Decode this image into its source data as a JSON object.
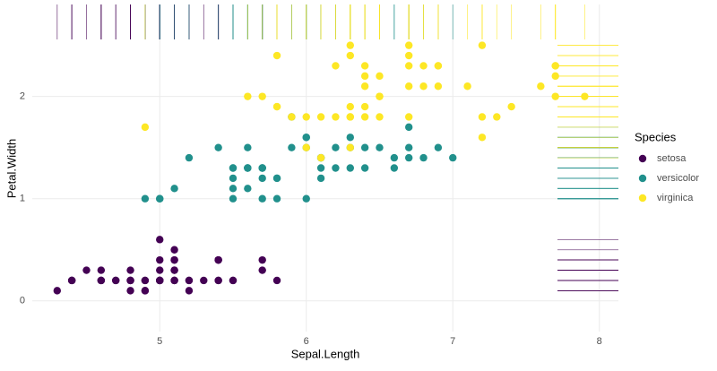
{
  "chart_data": {
    "type": "scatter",
    "x_label": "Sepal.Length",
    "y_label": "Petal.Width",
    "legend_title": "Species",
    "xlim": [
      4.13,
      8.13
    ],
    "ylim": [
      -0.3,
      2.9
    ],
    "xticks": [
      5,
      6,
      7,
      8
    ],
    "yticks": [
      0,
      1,
      2
    ],
    "grid": true,
    "rug": true,
    "legend": "right",
    "series": [
      {
        "name": "setosa",
        "color": "#440154",
        "x": [
          5.1,
          4.9,
          4.7,
          4.6,
          5.0,
          5.4,
          4.6,
          5.0,
          4.4,
          4.9,
          5.4,
          4.8,
          4.8,
          4.3,
          5.8,
          5.7,
          5.4,
          5.1,
          5.7,
          5.1,
          5.4,
          5.1,
          4.6,
          5.1,
          4.8,
          5.0,
          5.0,
          5.2,
          5.2,
          4.7,
          4.8,
          5.4,
          5.2,
          5.5,
          4.9,
          5.0,
          5.5,
          4.9,
          4.4,
          5.1,
          5.0,
          4.5,
          4.4,
          5.0,
          5.1,
          4.8,
          5.1,
          4.6,
          5.3,
          5.0
        ],
        "values": [
          0.2,
          0.2,
          0.2,
          0.2,
          0.2,
          0.4,
          0.3,
          0.2,
          0.2,
          0.1,
          0.2,
          0.2,
          0.1,
          0.1,
          0.2,
          0.4,
          0.4,
          0.3,
          0.3,
          0.3,
          0.2,
          0.4,
          0.2,
          0.5,
          0.2,
          0.2,
          0.4,
          0.2,
          0.2,
          0.2,
          0.2,
          0.4,
          0.1,
          0.2,
          0.2,
          0.2,
          0.2,
          0.1,
          0.2,
          0.2,
          0.3,
          0.3,
          0.2,
          0.6,
          0.4,
          0.3,
          0.2,
          0.2,
          0.2,
          0.2
        ]
      },
      {
        "name": "versicolor",
        "color": "#21908C",
        "x": [
          7.0,
          6.4,
          6.9,
          5.5,
          6.5,
          5.7,
          6.3,
          4.9,
          6.6,
          5.2,
          5.0,
          5.9,
          6.0,
          6.1,
          5.6,
          6.7,
          5.6,
          5.8,
          6.2,
          5.6,
          5.9,
          6.1,
          6.3,
          6.1,
          6.4,
          6.6,
          6.8,
          6.7,
          6.0,
          5.7,
          5.5,
          5.5,
          5.8,
          6.0,
          5.4,
          6.0,
          6.7,
          6.3,
          5.6,
          5.5,
          5.5,
          6.1,
          5.8,
          5.0,
          5.6,
          5.7,
          5.7,
          6.2,
          5.1,
          5.7
        ],
        "values": [
          1.4,
          1.5,
          1.5,
          1.3,
          1.5,
          1.3,
          1.6,
          1.0,
          1.3,
          1.4,
          1.0,
          1.5,
          1.0,
          1.4,
          1.3,
          1.4,
          1.5,
          1.0,
          1.5,
          1.1,
          1.8,
          1.3,
          1.5,
          1.2,
          1.3,
          1.4,
          1.4,
          1.7,
          1.5,
          1.0,
          1.1,
          1.0,
          1.2,
          1.6,
          1.5,
          1.6,
          1.5,
          1.3,
          1.3,
          1.3,
          1.2,
          1.4,
          1.2,
          1.0,
          1.3,
          1.2,
          1.3,
          1.3,
          1.1,
          1.3
        ]
      },
      {
        "name": "virginica",
        "color": "#FDE725",
        "x": [
          6.3,
          5.8,
          7.1,
          6.3,
          6.5,
          7.6,
          4.9,
          7.3,
          6.7,
          7.2,
          6.5,
          6.4,
          6.8,
          5.7,
          5.8,
          6.4,
          6.5,
          7.7,
          7.7,
          6.0,
          6.9,
          5.6,
          7.7,
          6.3,
          6.7,
          7.2,
          6.2,
          6.1,
          6.4,
          7.2,
          7.4,
          7.9,
          6.4,
          6.3,
          6.1,
          7.7,
          6.3,
          6.4,
          6.0,
          6.9,
          6.7,
          6.9,
          5.8,
          6.8,
          6.7,
          6.7,
          6.3,
          6.5,
          6.2,
          5.9
        ],
        "values": [
          2.5,
          1.9,
          2.1,
          1.8,
          2.2,
          2.1,
          1.7,
          1.8,
          1.8,
          2.5,
          2.0,
          1.9,
          2.1,
          2.0,
          2.4,
          2.3,
          1.8,
          2.2,
          2.3,
          1.5,
          2.3,
          2.0,
          2.0,
          1.8,
          2.1,
          1.8,
          1.8,
          1.8,
          2.1,
          1.6,
          1.9,
          2.0,
          2.2,
          1.5,
          1.4,
          2.3,
          2.4,
          1.8,
          1.8,
          2.1,
          2.4,
          2.3,
          1.9,
          2.3,
          2.5,
          2.3,
          1.9,
          2.0,
          2.3,
          1.8
        ]
      }
    ]
  }
}
